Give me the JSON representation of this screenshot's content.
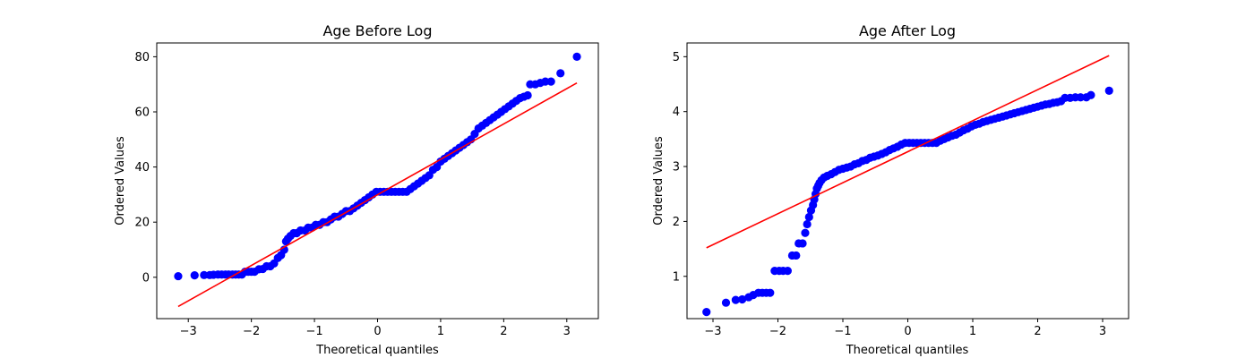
{
  "chart_data": [
    {
      "type": "scatter",
      "title": "Age Before Log",
      "xlabel": "Theoretical quantiles",
      "ylabel": "Ordered Values",
      "xlim": [
        -3.5,
        3.5
      ],
      "ylim": [
        -15,
        85
      ],
      "xticks": [
        -3,
        -2,
        -1,
        0,
        1,
        2,
        3
      ],
      "xtick_labels": [
        "−3",
        "−2",
        "−1",
        "0",
        "1",
        "2",
        "3"
      ],
      "yticks": [
        0,
        20,
        40,
        60,
        80
      ],
      "ytick_labels": [
        "0",
        "20",
        "40",
        "60",
        "80"
      ],
      "grid": false,
      "series": [
        {
          "kind": "scatter",
          "color": "#0000ff",
          "points": [
            [
              -3.16,
              0.4
            ],
            [
              -2.9,
              0.7
            ],
            [
              -2.75,
              0.8
            ],
            [
              -2.66,
              0.8
            ],
            [
              -2.6,
              0.9
            ],
            [
              -2.53,
              1.0
            ],
            [
              -2.47,
              1.0
            ],
            [
              -2.41,
              1.0
            ],
            [
              -2.36,
              1.0
            ],
            [
              -2.3,
              1.0
            ],
            [
              -2.25,
              1.0
            ],
            [
              -2.2,
              1.0
            ],
            [
              -2.15,
              1.0
            ],
            [
              -2.1,
              2.0
            ],
            [
              -2.05,
              2.0
            ],
            [
              -2.0,
              2.0
            ],
            [
              -1.95,
              2.0
            ],
            [
              -1.88,
              2.9
            ],
            [
              -1.82,
              3.0
            ],
            [
              -1.76,
              4.0
            ],
            [
              -1.7,
              4.0
            ],
            [
              -1.64,
              5.0
            ],
            [
              -1.58,
              7.0
            ],
            [
              -1.53,
              8.0
            ],
            [
              -1.48,
              10.0
            ],
            [
              -1.45,
              13.0
            ],
            [
              -1.42,
              14.0
            ],
            [
              -1.38,
              15.0
            ],
            [
              -1.33,
              16.0
            ],
            [
              -1.28,
              16.0
            ],
            [
              -1.22,
              17.0
            ],
            [
              -1.15,
              17.0
            ],
            [
              -1.1,
              18.0
            ],
            [
              -1.04,
              18.0
            ],
            [
              -0.98,
              19.0
            ],
            [
              -0.92,
              19.0
            ],
            [
              -0.86,
              20.0
            ],
            [
              -0.8,
              20.0
            ],
            [
              -0.74,
              21.0
            ],
            [
              -0.68,
              22.0
            ],
            [
              -0.62,
              22.0
            ],
            [
              -0.56,
              23.0
            ],
            [
              -0.5,
              24.0
            ],
            [
              -0.44,
              24.0
            ],
            [
              -0.38,
              25.0
            ],
            [
              -0.32,
              26.0
            ],
            [
              -0.26,
              27.0
            ],
            [
              -0.2,
              28.0
            ],
            [
              -0.14,
              29.0
            ],
            [
              -0.08,
              30.0
            ],
            [
              -0.02,
              31.0
            ],
            [
              0.04,
              31.0
            ],
            [
              0.1,
              31.0
            ],
            [
              0.16,
              31.0
            ],
            [
              0.22,
              31.0
            ],
            [
              0.28,
              31.0
            ],
            [
              0.34,
              31.0
            ],
            [
              0.4,
              31.0
            ],
            [
              0.46,
              31.0
            ],
            [
              0.52,
              32.0
            ],
            [
              0.58,
              33.0
            ],
            [
              0.64,
              34.0
            ],
            [
              0.7,
              35.0
            ],
            [
              0.76,
              36.0
            ],
            [
              0.82,
              37.0
            ],
            [
              0.88,
              39.0
            ],
            [
              0.94,
              40.0
            ],
            [
              1.0,
              42.0
            ],
            [
              1.06,
              43.0
            ],
            [
              1.12,
              44.0
            ],
            [
              1.18,
              45.0
            ],
            [
              1.24,
              46.0
            ],
            [
              1.3,
              47.0
            ],
            [
              1.36,
              48.0
            ],
            [
              1.42,
              49.0
            ],
            [
              1.48,
              50.0
            ],
            [
              1.54,
              52.0
            ],
            [
              1.6,
              54.0
            ],
            [
              1.66,
              55.0
            ],
            [
              1.72,
              56.0
            ],
            [
              1.78,
              57.0
            ],
            [
              1.84,
              58.0
            ],
            [
              1.9,
              59.0
            ],
            [
              1.96,
              60.0
            ],
            [
              2.02,
              61.0
            ],
            [
              2.08,
              62.0
            ],
            [
              2.14,
              63.0
            ],
            [
              2.2,
              64.0
            ],
            [
              2.26,
              65.0
            ],
            [
              2.32,
              65.5
            ],
            [
              2.38,
              66.0
            ],
            [
              2.42,
              70.0
            ],
            [
              2.5,
              70.0
            ],
            [
              2.58,
              70.5
            ],
            [
              2.66,
              71.0
            ],
            [
              2.75,
              71.0
            ],
            [
              2.9,
              74.0
            ],
            [
              3.16,
              80.0
            ]
          ]
        },
        {
          "kind": "line",
          "color": "#ff0000",
          "x": [
            -3.16,
            3.16
          ],
          "y": [
            -10.6,
            70.5
          ]
        }
      ]
    },
    {
      "type": "scatter",
      "title": "Age After Log",
      "xlabel": "Theoretical quantiles",
      "ylabel": "Ordered Values",
      "xlim": [
        -3.4,
        3.4
      ],
      "ylim": [
        0.23,
        5.25
      ],
      "xticks": [
        -3,
        -2,
        -1,
        0,
        1,
        2,
        3
      ],
      "xtick_labels": [
        "−3",
        "−2",
        "−1",
        "0",
        "1",
        "2",
        "3"
      ],
      "yticks": [
        1,
        2,
        3,
        4,
        5
      ],
      "ytick_labels": [
        "1",
        "2",
        "3",
        "4",
        "5"
      ],
      "grid": false,
      "series": [
        {
          "kind": "scatter",
          "color": "#0000ff",
          "points": [
            [
              -3.1,
              0.35
            ],
            [
              -2.8,
              0.52
            ],
            [
              -2.65,
              0.57
            ],
            [
              -2.55,
              0.58
            ],
            [
              -2.45,
              0.62
            ],
            [
              -2.38,
              0.66
            ],
            [
              -2.3,
              0.7
            ],
            [
              -2.24,
              0.7
            ],
            [
              -2.18,
              0.7
            ],
            [
              -2.12,
              0.7
            ],
            [
              -2.05,
              1.1
            ],
            [
              -1.98,
              1.1
            ],
            [
              -1.92,
              1.1
            ],
            [
              -1.85,
              1.1
            ],
            [
              -1.78,
              1.38
            ],
            [
              -1.72,
              1.38
            ],
            [
              -1.68,
              1.6
            ],
            [
              -1.62,
              1.6
            ],
            [
              -1.58,
              1.79
            ],
            [
              -1.55,
              1.95
            ],
            [
              -1.52,
              2.08
            ],
            [
              -1.49,
              2.2
            ],
            [
              -1.46,
              2.3
            ],
            [
              -1.44,
              2.4
            ],
            [
              -1.42,
              2.5
            ],
            [
              -1.4,
              2.6
            ],
            [
              -1.38,
              2.65
            ],
            [
              -1.36,
              2.7
            ],
            [
              -1.33,
              2.75
            ],
            [
              -1.29,
              2.8
            ],
            [
              -1.24,
              2.83
            ],
            [
              -1.18,
              2.86
            ],
            [
              -1.12,
              2.9
            ],
            [
              -1.06,
              2.94
            ],
            [
              -1.0,
              2.96
            ],
            [
              -0.94,
              2.98
            ],
            [
              -0.88,
              3.0
            ],
            [
              -0.82,
              3.04
            ],
            [
              -0.76,
              3.06
            ],
            [
              -0.7,
              3.1
            ],
            [
              -0.64,
              3.12
            ],
            [
              -0.58,
              3.16
            ],
            [
              -0.52,
              3.18
            ],
            [
              -0.46,
              3.2
            ],
            [
              -0.4,
              3.23
            ],
            [
              -0.34,
              3.26
            ],
            [
              -0.28,
              3.3
            ],
            [
              -0.22,
              3.33
            ],
            [
              -0.16,
              3.36
            ],
            [
              -0.1,
              3.4
            ],
            [
              -0.04,
              3.43
            ],
            [
              0.02,
              3.43
            ],
            [
              0.08,
              3.43
            ],
            [
              0.14,
              3.43
            ],
            [
              0.2,
              3.43
            ],
            [
              0.26,
              3.43
            ],
            [
              0.32,
              3.43
            ],
            [
              0.38,
              3.43
            ],
            [
              0.44,
              3.43
            ],
            [
              0.5,
              3.47
            ],
            [
              0.56,
              3.5
            ],
            [
              0.62,
              3.53
            ],
            [
              0.68,
              3.56
            ],
            [
              0.74,
              3.58
            ],
            [
              0.8,
              3.62
            ],
            [
              0.86,
              3.66
            ],
            [
              0.92,
              3.69
            ],
            [
              0.98,
              3.73
            ],
            [
              1.04,
              3.76
            ],
            [
              1.1,
              3.78
            ],
            [
              1.16,
              3.81
            ],
            [
              1.22,
              3.83
            ],
            [
              1.28,
              3.85
            ],
            [
              1.34,
              3.87
            ],
            [
              1.4,
              3.89
            ],
            [
              1.46,
              3.91
            ],
            [
              1.52,
              3.93
            ],
            [
              1.58,
              3.95
            ],
            [
              1.64,
              3.97
            ],
            [
              1.7,
              3.99
            ],
            [
              1.76,
              4.01
            ],
            [
              1.82,
              4.03
            ],
            [
              1.88,
              4.05
            ],
            [
              1.94,
              4.07
            ],
            [
              2.0,
              4.09
            ],
            [
              2.06,
              4.11
            ],
            [
              2.12,
              4.13
            ],
            [
              2.18,
              4.14
            ],
            [
              2.24,
              4.16
            ],
            [
              2.3,
              4.17
            ],
            [
              2.36,
              4.19
            ],
            [
              2.42,
              4.25
            ],
            [
              2.5,
              4.25
            ],
            [
              2.58,
              4.26
            ],
            [
              2.66,
              4.26
            ],
            [
              2.75,
              4.26
            ],
            [
              2.82,
              4.3
            ],
            [
              3.1,
              4.38
            ]
          ]
        },
        {
          "kind": "line",
          "color": "#ff0000",
          "x": [
            -3.1,
            3.1
          ],
          "y": [
            1.52,
            5.02
          ]
        }
      ]
    }
  ]
}
